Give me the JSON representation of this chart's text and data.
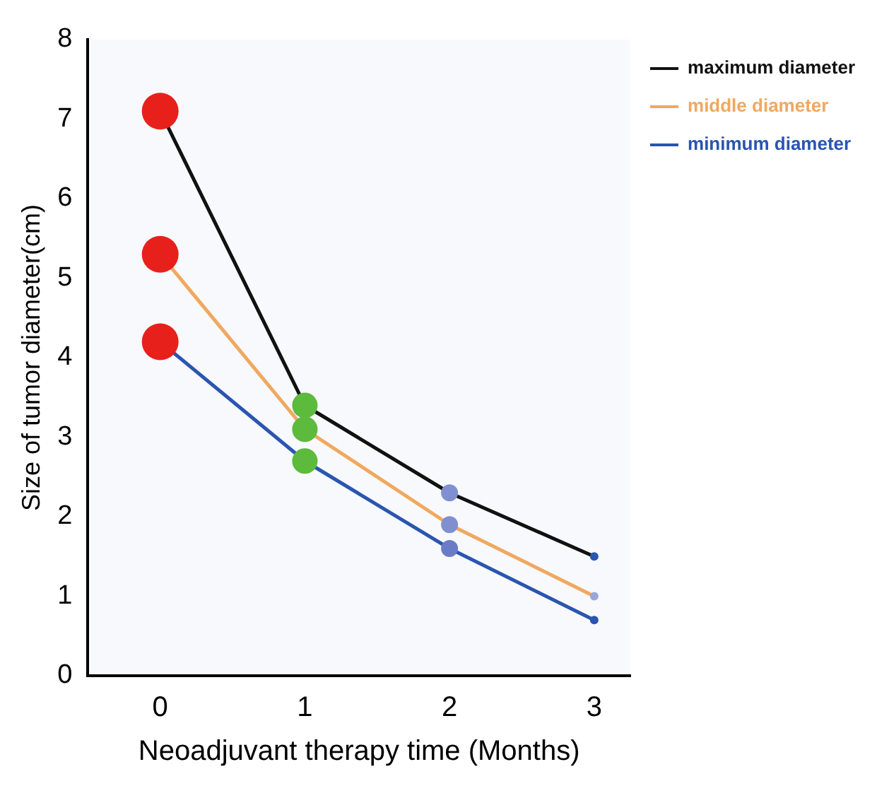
{
  "chart_data": {
    "type": "line",
    "xlabel": "Neoadjuvant therapy time (Months)",
    "ylabel": "Size of tumor diameter(cm)",
    "x": [
      0,
      1,
      2,
      3
    ],
    "series": [
      {
        "name": "maximum diameter",
        "color": "#111111",
        "values": [
          7.1,
          3.4,
          2.3,
          1.5
        ],
        "colors": [
          "#e8201c",
          "#5cba3c",
          "#7f8fd0",
          "#2a56b0"
        ]
      },
      {
        "name": "middle diameter",
        "color": "#f0a860",
        "values": [
          5.3,
          3.1,
          1.9,
          1.0
        ],
        "colors": [
          "#e8201c",
          "#5cba3c",
          "#7f8fd0",
          "#9aa8d8"
        ]
      },
      {
        "name": "minimum diameter",
        "color": "#2a55b0",
        "values": [
          4.2,
          2.7,
          1.6,
          0.7
        ],
        "colors": [
          "#e8201c",
          "#5cba3c",
          "#6a7cc8",
          "#2a55b0"
        ]
      }
    ],
    "xlim": [
      -0.5,
      3.25
    ],
    "xticks": [
      0,
      1,
      2,
      3
    ],
    "ylim": [
      0,
      8
    ],
    "yticks": [
      0,
      1,
      2,
      3,
      4,
      5,
      6,
      7,
      8
    ],
    "grid": false,
    "legend": "top right",
    "marker": "circle",
    "line_style": "solid"
  }
}
